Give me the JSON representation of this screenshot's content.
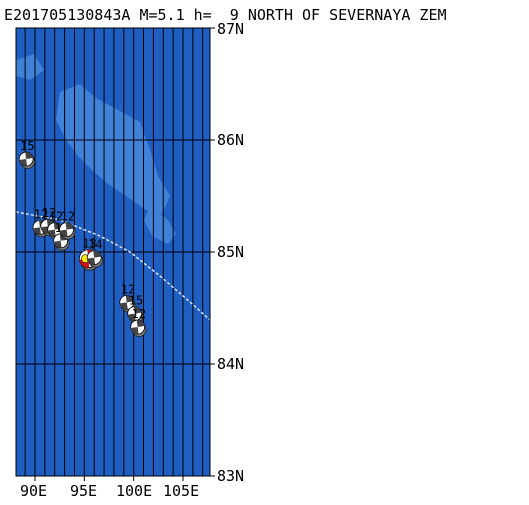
{
  "header": {
    "event_id": "E201705130843A",
    "magnitude": "M=5.1",
    "depth": "h=  9",
    "region": "NORTH OF SEVERNAYA ZEM"
  },
  "map": {
    "lat_labels": [
      "87N",
      "86N",
      "85N",
      "84N",
      "83N"
    ],
    "lon_labels": [
      "90E",
      "95E",
      "100E",
      "105E"
    ],
    "colors": {
      "ocean": "#1f5fc4",
      "land": "#3f82d8",
      "grid": "#000000",
      "track": "#d8e0ec"
    }
  },
  "mechanisms": [
    {
      "label": "15",
      "lon": 89.1,
      "lat": 85.83
    },
    {
      "label": "12",
      "lon": 90.5,
      "lat": 85.22
    },
    {
      "label": "12",
      "lon": 91.3,
      "lat": 85.23
    },
    {
      "label": "12",
      "lon": 92.0,
      "lat": 85.2
    },
    {
      "label": "12",
      "lon": 92.6,
      "lat": 85.1
    },
    {
      "label": "12",
      "lon": 93.2,
      "lat": 85.2
    },
    {
      "label": "13",
      "lon": 95.4,
      "lat": 84.94,
      "main": true
    },
    {
      "label": "14",
      "lon": 96.0,
      "lat": 84.95
    },
    {
      "label": "12",
      "lon": 99.3,
      "lat": 84.55
    },
    {
      "label": "15",
      "lon": 100.1,
      "lat": 84.45
    },
    {
      "label": "12",
      "lon": 100.4,
      "lat": 84.33
    }
  ]
}
